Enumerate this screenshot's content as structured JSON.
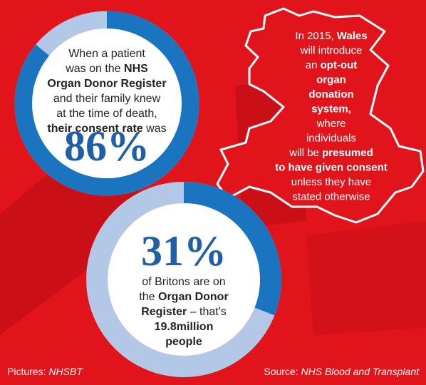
{
  "chart_data": [
    {
      "type": "donut",
      "values": [
        86
      ],
      "value_labels": [
        "86%"
      ],
      "color": "#1a74c0",
      "track_color": "#b3c7e6",
      "lines": [
        [
          {
            "text": "When a patient"
          }
        ],
        [
          {
            "text": "was on the "
          },
          {
            "text": "NHS",
            "bold": true
          }
        ],
        [
          {
            "text": "Organ Donor Register",
            "bold": true
          }
        ],
        [
          {
            "text": "and their family knew"
          }
        ],
        [
          {
            "text": "at the time of death,"
          }
        ],
        [
          {
            "text": "their consent rate",
            "bold": true
          },
          {
            "text": " was"
          }
        ]
      ]
    },
    {
      "type": "donut",
      "values": [
        31
      ],
      "value_labels": [
        "31%"
      ],
      "color": "#1a74c0",
      "track_color": "#b3c7e6",
      "lines": [
        [
          {
            "text": "of Britons are on"
          }
        ],
        [
          {
            "text": "the "
          },
          {
            "text": "Organ Donor",
            "bold": true
          }
        ],
        [
          {
            "text": "Register",
            "bold": true
          },
          {
            "text": " – that's"
          }
        ],
        [
          {
            "text": "19.8million",
            "bold": true
          }
        ],
        [
          {
            "text": "people",
            "bold": true
          }
        ]
      ]
    }
  ],
  "wales": {
    "lines": [
      [
        {
          "text": "In 2015, "
        },
        {
          "text": "Wales",
          "bold": true
        }
      ],
      [
        {
          "text": "will introduce"
        }
      ],
      [
        {
          "text": "an "
        },
        {
          "text": "opt-out",
          "bold": true
        }
      ],
      [
        {
          "text": "organ",
          "bold": true
        }
      ],
      [
        {
          "text": "donation",
          "bold": true
        }
      ],
      [
        {
          "text": "system,",
          "bold": true
        }
      ],
      [
        {
          "text": "where"
        }
      ],
      [
        {
          "text": "individuals"
        }
      ],
      [
        {
          "text": "will be "
        },
        {
          "text": "presumed",
          "bold": true
        }
      ],
      [
        {
          "text": "to have given consent",
          "bold": true
        }
      ],
      [
        {
          "text": "unless they have"
        }
      ],
      [
        {
          "text": "stated otherwise"
        }
      ]
    ]
  },
  "credits": {
    "pictures": [
      {
        "text": "Pictures: "
      },
      {
        "text": "NHSBT",
        "italic": true
      }
    ],
    "source": [
      {
        "text": "Source: "
      },
      {
        "text": "NHS Blood and Transplant",
        "italic": true
      }
    ]
  }
}
